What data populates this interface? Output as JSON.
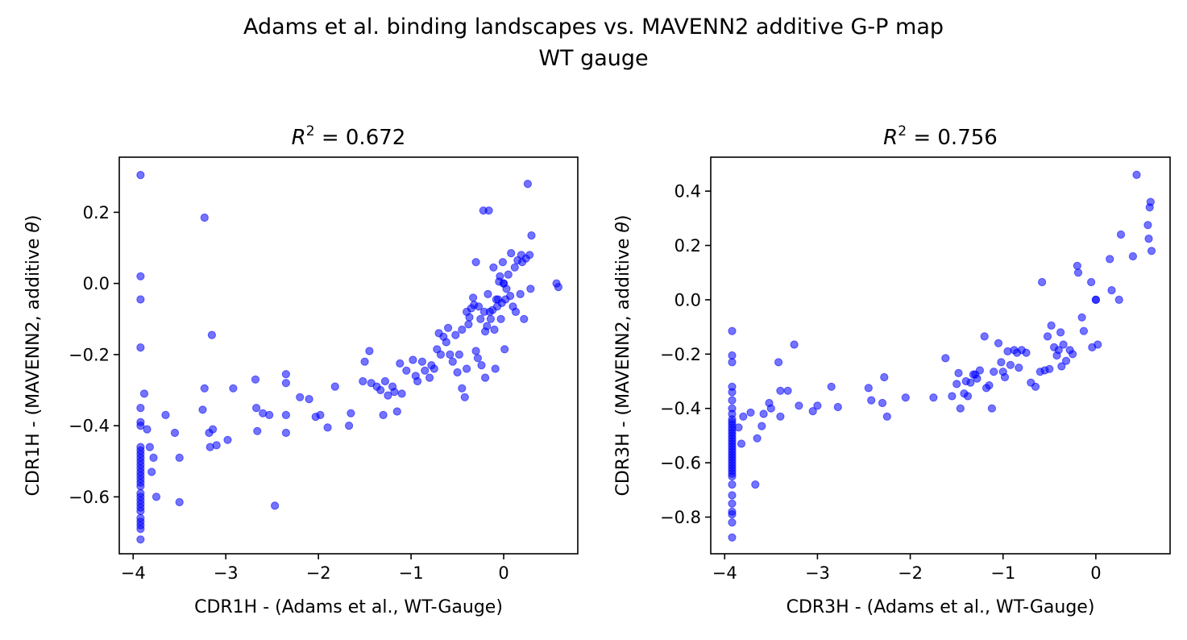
{
  "figure": {
    "suptitle_line1": "Adams et al. binding landscapes vs. MAVENN2 additive G-P map",
    "suptitle_line2": "WT gauge",
    "point_color": "#0000ff",
    "point_alpha": 0.55
  },
  "chart_data": [
    {
      "type": "scatter",
      "title_prefix": "R",
      "title_sup": "2",
      "title_suffix": " = 0.672",
      "xlabel": "CDR1H - (Adams et al., WT-Gauge)",
      "ylabel_main": "CDR1H - (MAVENN2, additive ",
      "ylabel_theta": "θ",
      "ylabel_end": ")",
      "xlim": [
        -4.15,
        0.8
      ],
      "ylim": [
        -0.76,
        0.355
      ],
      "xticks": [
        -4,
        -3,
        -2,
        -1,
        0
      ],
      "xtick_labels": [
        "−4",
        "−3",
        "−2",
        "−1",
        "0"
      ],
      "yticks": [
        -0.6,
        -0.4,
        -0.2,
        0.0,
        0.2
      ],
      "ytick_labels": [
        "−0.6",
        "−0.4",
        "−0.2",
        "0.0",
        "0.2"
      ],
      "points": [
        [
          -3.92,
          0.305
        ],
        [
          -3.92,
          0.02
        ],
        [
          -3.92,
          -0.045
        ],
        [
          -3.92,
          -0.18
        ],
        [
          -3.92,
          -0.35
        ],
        [
          -3.92,
          -0.39
        ],
        [
          -3.92,
          -0.4
        ],
        [
          -3.92,
          -0.46
        ],
        [
          -3.92,
          -0.47
        ],
        [
          -3.92,
          -0.48
        ],
        [
          -3.92,
          -0.49
        ],
        [
          -3.92,
          -0.5
        ],
        [
          -3.92,
          -0.51
        ],
        [
          -3.92,
          -0.52
        ],
        [
          -3.92,
          -0.53
        ],
        [
          -3.92,
          -0.54
        ],
        [
          -3.92,
          -0.55
        ],
        [
          -3.92,
          -0.56
        ],
        [
          -3.92,
          -0.57
        ],
        [
          -3.92,
          -0.59
        ],
        [
          -3.92,
          -0.6
        ],
        [
          -3.92,
          -0.61
        ],
        [
          -3.92,
          -0.62
        ],
        [
          -3.92,
          -0.63
        ],
        [
          -3.92,
          -0.64
        ],
        [
          -3.92,
          -0.66
        ],
        [
          -3.92,
          -0.67
        ],
        [
          -3.92,
          -0.68
        ],
        [
          -3.92,
          -0.69
        ],
        [
          -3.92,
          -0.72
        ],
        [
          -3.88,
          -0.31
        ],
        [
          -3.85,
          -0.41
        ],
        [
          -3.82,
          -0.46
        ],
        [
          -3.8,
          -0.53
        ],
        [
          -3.78,
          -0.49
        ],
        [
          -3.75,
          -0.6
        ],
        [
          -3.65,
          -0.37
        ],
        [
          -3.55,
          -0.42
        ],
        [
          -3.5,
          -0.49
        ],
        [
          -3.5,
          -0.615
        ],
        [
          -3.25,
          -0.355
        ],
        [
          -3.23,
          -0.295
        ],
        [
          -3.23,
          0.185
        ],
        [
          -3.18,
          -0.42
        ],
        [
          -3.17,
          -0.46
        ],
        [
          -3.15,
          -0.145
        ],
        [
          -3.14,
          -0.41
        ],
        [
          -3.1,
          -0.455
        ],
        [
          -2.98,
          -0.44
        ],
        [
          -2.92,
          -0.295
        ],
        [
          -2.68,
          -0.27
        ],
        [
          -2.67,
          -0.35
        ],
        [
          -2.66,
          -0.415
        ],
        [
          -2.6,
          -0.365
        ],
        [
          -2.53,
          -0.37
        ],
        [
          -2.47,
          -0.625
        ],
        [
          -2.35,
          -0.255
        ],
        [
          -2.35,
          -0.28
        ],
        [
          -2.35,
          -0.37
        ],
        [
          -2.35,
          -0.42
        ],
        [
          -2.2,
          -0.32
        ],
        [
          -2.1,
          -0.325
        ],
        [
          -2.03,
          -0.375
        ],
        [
          -1.98,
          -0.37
        ],
        [
          -1.9,
          -0.405
        ],
        [
          -1.82,
          -0.29
        ],
        [
          -1.67,
          -0.4
        ],
        [
          -1.65,
          -0.365
        ],
        [
          -1.52,
          -0.275
        ],
        [
          -1.5,
          -0.22
        ],
        [
          -1.45,
          -0.19
        ],
        [
          -1.43,
          -0.28
        ],
        [
          -1.37,
          -0.29
        ],
        [
          -1.33,
          -0.3
        ],
        [
          -1.3,
          -0.37
        ],
        [
          -1.28,
          -0.275
        ],
        [
          -1.25,
          -0.315
        ],
        [
          -1.2,
          -0.29
        ],
        [
          -1.18,
          -0.305
        ],
        [
          -1.15,
          -0.36
        ],
        [
          -1.12,
          -0.225
        ],
        [
          -1.1,
          -0.31
        ],
        [
          -1.05,
          -0.245
        ],
        [
          -0.98,
          -0.215
        ],
        [
          -0.95,
          -0.26
        ],
        [
          -0.93,
          -0.275
        ],
        [
          -0.88,
          -0.22
        ],
        [
          -0.85,
          -0.245
        ],
        [
          -0.8,
          -0.265
        ],
        [
          -0.78,
          -0.23
        ],
        [
          -0.75,
          -0.24
        ],
        [
          -0.72,
          -0.185
        ],
        [
          -0.7,
          -0.14
        ],
        [
          -0.68,
          -0.2
        ],
        [
          -0.65,
          -0.15
        ],
        [
          -0.62,
          -0.165
        ],
        [
          -0.6,
          -0.125
        ],
        [
          -0.58,
          -0.2
        ],
        [
          -0.55,
          -0.22
        ],
        [
          -0.52,
          -0.145
        ],
        [
          -0.5,
          -0.25
        ],
        [
          -0.48,
          -0.2
        ],
        [
          -0.45,
          -0.295
        ],
        [
          -0.45,
          -0.13
        ],
        [
          -0.42,
          -0.32
        ],
        [
          -0.4,
          -0.24
        ],
        [
          -0.4,
          -0.08
        ],
        [
          -0.38,
          -0.115
        ],
        [
          -0.37,
          -0.095
        ],
        [
          -0.35,
          -0.07
        ],
        [
          -0.33,
          -0.04
        ],
        [
          -0.32,
          -0.06
        ],
        [
          -0.3,
          -0.19
        ],
        [
          -0.3,
          0.06
        ],
        [
          -0.28,
          -0.21
        ],
        [
          -0.27,
          -0.065
        ],
        [
          -0.25,
          -0.1
        ],
        [
          -0.24,
          -0.23
        ],
        [
          -0.22,
          0.205
        ],
        [
          -0.21,
          -0.08
        ],
        [
          -0.2,
          -0.135
        ],
        [
          -0.2,
          -0.265
        ],
        [
          -0.18,
          -0.12
        ],
        [
          -0.17,
          -0.03
        ],
        [
          -0.16,
          0.205
        ],
        [
          -0.15,
          -0.08
        ],
        [
          -0.14,
          -0.1
        ],
        [
          -0.12,
          -0.075
        ],
        [
          -0.11,
          0.045
        ],
        [
          -0.1,
          -0.13
        ],
        [
          -0.09,
          -0.24
        ],
        [
          -0.08,
          -0.045
        ],
        [
          -0.07,
          -0.065
        ],
        [
          -0.06,
          -0.045
        ],
        [
          -0.05,
          0.005
        ],
        [
          -0.04,
          0.02
        ],
        [
          -0.03,
          -0.1
        ],
        [
          -0.02,
          -0.055
        ],
        [
          -0.01,
          0.06
        ],
        [
          0.0,
          0.0
        ],
        [
          0.0,
          0.0
        ],
        [
          0.01,
          -0.185
        ],
        [
          0.02,
          -0.045
        ],
        [
          0.03,
          -0.015
        ],
        [
          0.05,
          0.025
        ],
        [
          0.07,
          -0.035
        ],
        [
          0.08,
          0.085
        ],
        [
          0.1,
          -0.065
        ],
        [
          0.12,
          0.045
        ],
        [
          0.13,
          -0.08
        ],
        [
          0.15,
          0.065
        ],
        [
          0.18,
          -0.03
        ],
        [
          0.19,
          0.08
        ],
        [
          0.2,
          0.06
        ],
        [
          0.22,
          -0.1
        ],
        [
          0.24,
          0.07
        ],
        [
          0.26,
          0.28
        ],
        [
          0.28,
          0.08
        ],
        [
          0.29,
          -0.015
        ],
        [
          0.3,
          0.135
        ],
        [
          0.57,
          0.0
        ],
        [
          0.59,
          -0.01
        ]
      ]
    },
    {
      "type": "scatter",
      "title_prefix": "R",
      "title_sup": "2",
      "title_suffix": " = 0.756",
      "xlabel": "CDR3H - (Adams et al., WT-Gauge)",
      "ylabel_main": "CDR3H - (MAVENN2, additive ",
      "ylabel_theta": "θ",
      "ylabel_end": ")",
      "xlim": [
        -4.15,
        0.8
      ],
      "ylim": [
        -0.935,
        0.525
      ],
      "xticks": [
        -4,
        -3,
        -2,
        -1,
        0
      ],
      "xtick_labels": [
        "−4",
        "−3",
        "−2",
        "−1",
        "0"
      ],
      "yticks": [
        -0.8,
        -0.6,
        -0.4,
        -0.2,
        0.0,
        0.2,
        0.4
      ],
      "ytick_labels": [
        "−0.8",
        "−0.6",
        "−0.4",
        "−0.2",
        "0.0",
        "0.2",
        "0.4"
      ],
      "points": [
        [
          -3.92,
          -0.115
        ],
        [
          -3.92,
          -0.205
        ],
        [
          -3.92,
          -0.23
        ],
        [
          -3.92,
          -0.32
        ],
        [
          -3.92,
          -0.34
        ],
        [
          -3.92,
          -0.37
        ],
        [
          -3.92,
          -0.4
        ],
        [
          -3.92,
          -0.42
        ],
        [
          -3.92,
          -0.44
        ],
        [
          -3.92,
          -0.45
        ],
        [
          -3.92,
          -0.46
        ],
        [
          -3.92,
          -0.47
        ],
        [
          -3.92,
          -0.48
        ],
        [
          -3.92,
          -0.49
        ],
        [
          -3.92,
          -0.5
        ],
        [
          -3.92,
          -0.51
        ],
        [
          -3.92,
          -0.52
        ],
        [
          -3.92,
          -0.53
        ],
        [
          -3.92,
          -0.54
        ],
        [
          -3.92,
          -0.55
        ],
        [
          -3.92,
          -0.56
        ],
        [
          -3.92,
          -0.57
        ],
        [
          -3.92,
          -0.58
        ],
        [
          -3.92,
          -0.59
        ],
        [
          -3.92,
          -0.6
        ],
        [
          -3.92,
          -0.61
        ],
        [
          -3.92,
          -0.62
        ],
        [
          -3.92,
          -0.63
        ],
        [
          -3.92,
          -0.64
        ],
        [
          -3.92,
          -0.65
        ],
        [
          -3.92,
          -0.68
        ],
        [
          -3.92,
          -0.72
        ],
        [
          -3.92,
          -0.75
        ],
        [
          -3.92,
          -0.78
        ],
        [
          -3.92,
          -0.79
        ],
        [
          -3.92,
          -0.82
        ],
        [
          -3.92,
          -0.875
        ],
        [
          -3.85,
          -0.47
        ],
        [
          -3.82,
          -0.53
        ],
        [
          -3.8,
          -0.43
        ],
        [
          -3.72,
          -0.415
        ],
        [
          -3.67,
          -0.68
        ],
        [
          -3.65,
          -0.51
        ],
        [
          -3.6,
          -0.465
        ],
        [
          -3.58,
          -0.42
        ],
        [
          -3.52,
          -0.38
        ],
        [
          -3.5,
          -0.4
        ],
        [
          -3.42,
          -0.23
        ],
        [
          -3.4,
          -0.43
        ],
        [
          -3.4,
          -0.335
        ],
        [
          -3.32,
          -0.335
        ],
        [
          -3.25,
          -0.165
        ],
        [
          -3.2,
          -0.39
        ],
        [
          -3.05,
          -0.41
        ],
        [
          -3.0,
          -0.39
        ],
        [
          -2.85,
          -0.32
        ],
        [
          -2.78,
          -0.395
        ],
        [
          -2.45,
          -0.325
        ],
        [
          -2.42,
          -0.37
        ],
        [
          -2.3,
          -0.38
        ],
        [
          -2.28,
          -0.285
        ],
        [
          -2.25,
          -0.43
        ],
        [
          -2.05,
          -0.36
        ],
        [
          -1.75,
          -0.36
        ],
        [
          -1.62,
          -0.215
        ],
        [
          -1.55,
          -0.355
        ],
        [
          -1.5,
          -0.31
        ],
        [
          -1.48,
          -0.27
        ],
        [
          -1.46,
          -0.4
        ],
        [
          -1.42,
          -0.345
        ],
        [
          -1.4,
          -0.3
        ],
        [
          -1.38,
          -0.355
        ],
        [
          -1.35,
          -0.305
        ],
        [
          -1.32,
          -0.275
        ],
        [
          -1.3,
          -0.275
        ],
        [
          -1.28,
          -0.29
        ],
        [
          -1.25,
          -0.26
        ],
        [
          -1.2,
          -0.135
        ],
        [
          -1.18,
          -0.325
        ],
        [
          -1.15,
          -0.315
        ],
        [
          -1.12,
          -0.4
        ],
        [
          -1.1,
          -0.265
        ],
        [
          -1.05,
          -0.16
        ],
        [
          -1.02,
          -0.23
        ],
        [
          -1.0,
          -0.265
        ],
        [
          -0.98,
          -0.285
        ],
        [
          -0.95,
          -0.19
        ],
        [
          -0.92,
          -0.24
        ],
        [
          -0.88,
          -0.185
        ],
        [
          -0.85,
          -0.195
        ],
        [
          -0.83,
          -0.25
        ],
        [
          -0.8,
          -0.185
        ],
        [
          -0.75,
          -0.195
        ],
        [
          -0.7,
          -0.305
        ],
        [
          -0.65,
          -0.32
        ],
        [
          -0.6,
          -0.265
        ],
        [
          -0.58,
          0.065
        ],
        [
          -0.55,
          -0.26
        ],
        [
          -0.52,
          -0.135
        ],
        [
          -0.5,
          -0.255
        ],
        [
          -0.48,
          -0.095
        ],
        [
          -0.45,
          -0.175
        ],
        [
          -0.42,
          -0.205
        ],
        [
          -0.4,
          -0.185
        ],
        [
          -0.38,
          -0.12
        ],
        [
          -0.37,
          -0.245
        ],
        [
          -0.35,
          -0.165
        ],
        [
          -0.32,
          -0.225
        ],
        [
          -0.28,
          -0.185
        ],
        [
          -0.25,
          -0.2
        ],
        [
          -0.2,
          0.125
        ],
        [
          -0.19,
          0.1
        ],
        [
          -0.15,
          -0.065
        ],
        [
          -0.13,
          -0.115
        ],
        [
          -0.05,
          0.065
        ],
        [
          -0.04,
          -0.175
        ],
        [
          0.0,
          0.0
        ],
        [
          0.0,
          0.0
        ],
        [
          0.02,
          -0.165
        ],
        [
          0.15,
          0.15
        ],
        [
          0.17,
          0.035
        ],
        [
          0.25,
          0.0
        ],
        [
          0.27,
          0.24
        ],
        [
          0.4,
          0.16
        ],
        [
          0.44,
          0.46
        ],
        [
          0.56,
          0.275
        ],
        [
          0.57,
          0.225
        ],
        [
          0.58,
          0.34
        ],
        [
          0.59,
          0.36
        ],
        [
          0.6,
          0.18
        ]
      ]
    }
  ]
}
